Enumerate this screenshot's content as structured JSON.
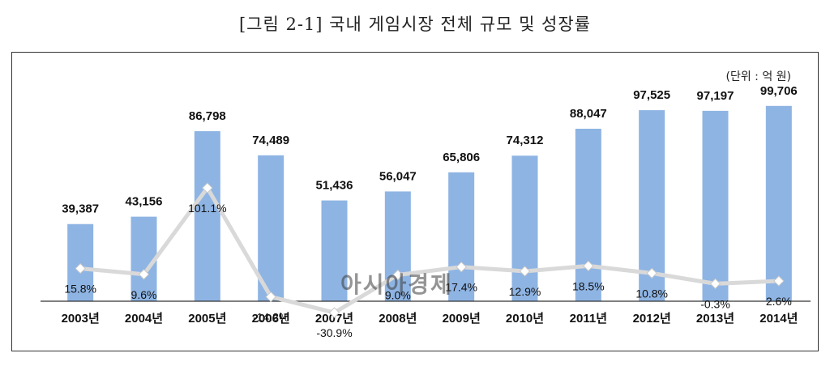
{
  "figure_title": "[그림 2-1] 국내 게임시장 전체 규모 및 성장률",
  "unit_note": "(단위 : 억 원)",
  "watermark": "아시아경제",
  "colors": {
    "bar": "#8eb4e3",
    "line": "#d9d9d9",
    "marker": "#ffffff",
    "axis": "#333333"
  },
  "chart_data": {
    "type": "bar",
    "categories": [
      "2003년",
      "2004년",
      "2005년",
      "2006년",
      "2007년",
      "2008년",
      "2009년",
      "2010년",
      "2011년",
      "2012년",
      "2013년",
      "2014년"
    ],
    "series": [
      {
        "type": "bar",
        "values": [
          39387,
          43156,
          86798,
          74489,
          51436,
          56047,
          65806,
          74312,
          88047,
          97525,
          97197,
          99706
        ],
        "labels": [
          "39,387",
          "43,156",
          "86,798",
          "74,489",
          "51,436",
          "56,047",
          "65,806",
          "74,312",
          "88,047",
          "97,525",
          "97,197",
          "99,706"
        ]
      },
      {
        "type": "line",
        "values": [
          15.8,
          9.6,
          101.1,
          -14.2,
          -30.9,
          9.0,
          17.4,
          12.9,
          18.5,
          10.8,
          -0.3,
          2.6
        ],
        "labels": [
          "15.8%",
          "9.6%",
          "101.1%",
          "-14.2%",
          "-30.9%",
          "9.0%",
          "17.4%",
          "12.9%",
          "18.5%",
          "10.8%",
          "-0.3%",
          "2.6%"
        ]
      }
    ],
    "bar_ylim": [
      0,
      105000
    ],
    "line_ylim": [
      -60,
      180
    ],
    "grid": false,
    "legend": "none"
  }
}
